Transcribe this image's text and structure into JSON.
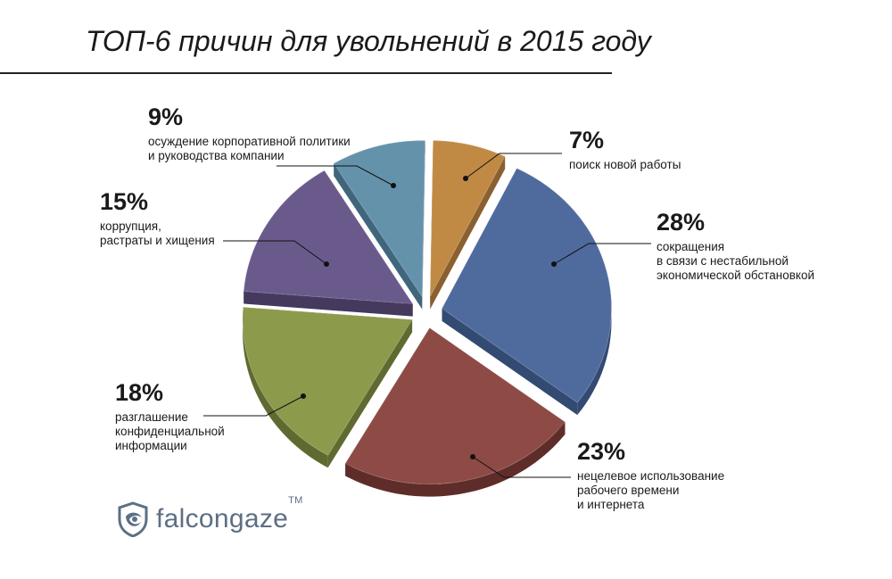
{
  "title": "ТОП-6 причин для увольнений в 2015 году",
  "chart_data": {
    "type": "pie",
    "title": "ТОП-6 причин для увольнений в 2015 году",
    "slices": [
      {
        "label_pct": "7%",
        "value": 7,
        "text_lines": [
          "поиск новой работы"
        ],
        "color": "#c08a45",
        "side": "#8a6030"
      },
      {
        "label_pct": "28%",
        "value": 28,
        "text_lines": [
          "сокращения",
          "в связи с нестабильной",
          "экономической обстановкой"
        ],
        "color": "#4f6a9d",
        "side": "#334a72"
      },
      {
        "label_pct": "23%",
        "value": 23,
        "text_lines": [
          "нецелевое использование",
          "рабочего времени",
          "и интернета"
        ],
        "color": "#8e4a45",
        "side": "#5e2d2a"
      },
      {
        "label_pct": "18%",
        "value": 18,
        "text_lines": [
          "разглашение",
          "конфиденциальной",
          "информации"
        ],
        "color": "#8c9a4c",
        "side": "#5e6a30"
      },
      {
        "label_pct": "15%",
        "value": 15,
        "text_lines": [
          "коррупция,",
          "растраты и хищения"
        ],
        "color": "#6a5a8c",
        "side": "#45395e"
      },
      {
        "label_pct": "9%",
        "value": 9,
        "text_lines": [
          "осуждение корпоративной политики",
          "и руководства компании"
        ],
        "color": "#6592ab",
        "side": "#40667d"
      }
    ]
  },
  "logo": {
    "word": "falcongaze",
    "tm": "TM",
    "color": "#5c6f84"
  }
}
